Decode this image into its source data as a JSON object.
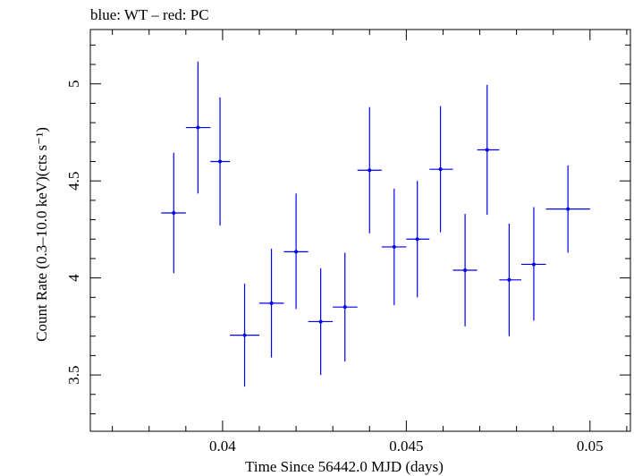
{
  "chart_data": {
    "type": "scatter",
    "title": "blue: WT – red: PC",
    "xlabel": "Time Since 56442.0 MJD (days)",
    "ylabel": "Count Rate (0.3–10.0 keV)(cts s⁻¹)",
    "xlim": [
      0.0364,
      0.0511
    ],
    "ylim": [
      3.21,
      5.28
    ],
    "xticks": [
      {
        "value": 0.04,
        "label": "0.04"
      },
      {
        "value": 0.045,
        "label": "0.045"
      },
      {
        "value": 0.05,
        "label": "0.05"
      }
    ],
    "yticks": [
      {
        "value": 3.5,
        "label": "3.5"
      },
      {
        "value": 4,
        "label": "4"
      },
      {
        "value": 4.5,
        "label": "4.5"
      },
      {
        "value": 5,
        "label": "5"
      }
    ],
    "grid": false,
    "series": [
      {
        "color": "#0000ee",
        "points": [
          {
            "x": 0.03867,
            "y": 4.335,
            "xlo": 0.03833,
            "xhi": 0.039,
            "ylo": 4.025,
            "yhi": 4.645
          },
          {
            "x": 0.03933,
            "y": 4.775,
            "xlo": 0.039,
            "xhi": 0.03967,
            "ylo": 4.435,
            "yhi": 5.115
          },
          {
            "x": 0.03993,
            "y": 4.6,
            "xlo": 0.03967,
            "xhi": 0.0402,
            "ylo": 4.27,
            "yhi": 4.93
          },
          {
            "x": 0.0406,
            "y": 3.705,
            "xlo": 0.0402,
            "xhi": 0.041,
            "ylo": 3.44,
            "yhi": 3.97
          },
          {
            "x": 0.04133,
            "y": 3.87,
            "xlo": 0.041,
            "xhi": 0.04167,
            "ylo": 3.59,
            "yhi": 4.15
          },
          {
            "x": 0.042,
            "y": 4.135,
            "xlo": 0.04167,
            "xhi": 0.04233,
            "ylo": 3.84,
            "yhi": 4.435
          },
          {
            "x": 0.04267,
            "y": 3.775,
            "xlo": 0.04233,
            "xhi": 0.043,
            "ylo": 3.5,
            "yhi": 4.05
          },
          {
            "x": 0.04333,
            "y": 3.85,
            "xlo": 0.043,
            "xhi": 0.04367,
            "ylo": 3.57,
            "yhi": 4.13
          },
          {
            "x": 0.044,
            "y": 4.555,
            "xlo": 0.04367,
            "xhi": 0.04433,
            "ylo": 4.23,
            "yhi": 4.88
          },
          {
            "x": 0.04467,
            "y": 4.16,
            "xlo": 0.04433,
            "xhi": 0.045,
            "ylo": 3.86,
            "yhi": 4.46
          },
          {
            "x": 0.0453,
            "y": 4.2,
            "xlo": 0.045,
            "xhi": 0.04563,
            "ylo": 3.9,
            "yhi": 4.5
          },
          {
            "x": 0.04593,
            "y": 4.56,
            "xlo": 0.04563,
            "xhi": 0.04627,
            "ylo": 4.235,
            "yhi": 4.885
          },
          {
            "x": 0.0466,
            "y": 4.04,
            "xlo": 0.04627,
            "xhi": 0.04693,
            "ylo": 3.75,
            "yhi": 4.33
          },
          {
            "x": 0.0472,
            "y": 4.66,
            "xlo": 0.04693,
            "xhi": 0.04753,
            "ylo": 4.325,
            "yhi": 4.995
          },
          {
            "x": 0.0478,
            "y": 3.99,
            "xlo": 0.04753,
            "xhi": 0.04813,
            "ylo": 3.7,
            "yhi": 4.28
          },
          {
            "x": 0.04847,
            "y": 4.07,
            "xlo": 0.04813,
            "xhi": 0.0488,
            "ylo": 3.78,
            "yhi": 4.365
          },
          {
            "x": 0.0494,
            "y": 4.355,
            "xlo": 0.0488,
            "xhi": 0.05,
            "ylo": 4.13,
            "yhi": 4.58
          }
        ]
      }
    ]
  }
}
